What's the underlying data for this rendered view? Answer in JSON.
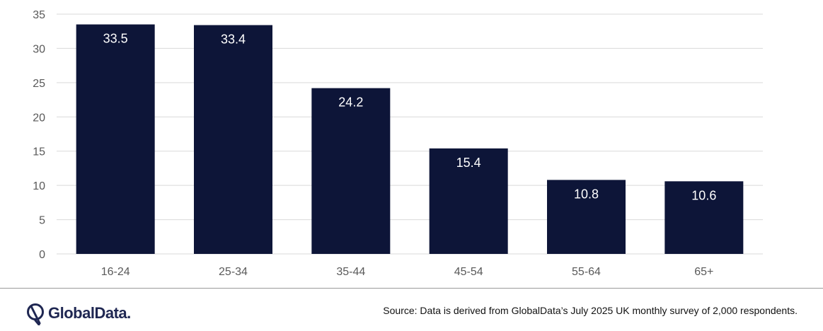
{
  "chart_data": {
    "type": "bar",
    "categories": [
      "16-24",
      "25-34",
      "35-44",
      "45-54",
      "55-64",
      "65+"
    ],
    "values": [
      33.5,
      33.4,
      24.2,
      15.4,
      10.8,
      10.6
    ],
    "data_labels": [
      "33.5",
      "33.4",
      "24.2",
      "15.4",
      "10.8",
      "10.6"
    ],
    "ylim": [
      0,
      35
    ],
    "yticks": [
      "0",
      "5",
      "10",
      "15",
      "20",
      "25",
      "30",
      "35"
    ],
    "grid": true,
    "legend": "none",
    "bar_color": "#0d1538",
    "label_color": "#ffffff",
    "tick_color": "#595959",
    "grid_color": "#d9d9d9"
  },
  "footer": {
    "logo_text": "GlobalData.",
    "source": "Source: Data is derived from GlobalData’s July 2025 UK monthly survey of 2,000 respondents."
  },
  "brand_color": "#1f2752"
}
